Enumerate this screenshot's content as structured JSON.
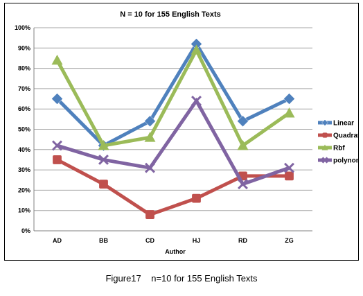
{
  "chart_data": {
    "type": "line",
    "title": "N = 10 for 155 English Texts",
    "xlabel": "Author",
    "ylabel": "",
    "categories": [
      "AD",
      "BB",
      "CD",
      "HJ",
      "RD",
      "ZG"
    ],
    "ylim": [
      0,
      100
    ],
    "yticks": [
      "0%",
      "10%",
      "20%",
      "30%",
      "40%",
      "50%",
      "60%",
      "70%",
      "80%",
      "90%",
      "100%"
    ],
    "grid": true,
    "legend_position": "right",
    "series": [
      {
        "name": "Linear",
        "color": "#4f81bd",
        "marker": "diamond",
        "values": [
          65,
          42,
          54,
          92,
          54,
          65
        ]
      },
      {
        "name": "Quadratic",
        "color": "#c0504d",
        "marker": "square",
        "values": [
          35,
          23,
          8,
          16,
          27,
          27
        ]
      },
      {
        "name": "Rbf",
        "color": "#9bbb59",
        "marker": "triangle",
        "values": [
          84,
          42,
          46,
          89,
          42,
          58
        ]
      },
      {
        "name": "polynomial",
        "color": "#8064a2",
        "marker": "x",
        "values": [
          42,
          35,
          31,
          64,
          23,
          31
        ]
      }
    ]
  },
  "caption": "Figure17    n=10 for 155 English Texts"
}
